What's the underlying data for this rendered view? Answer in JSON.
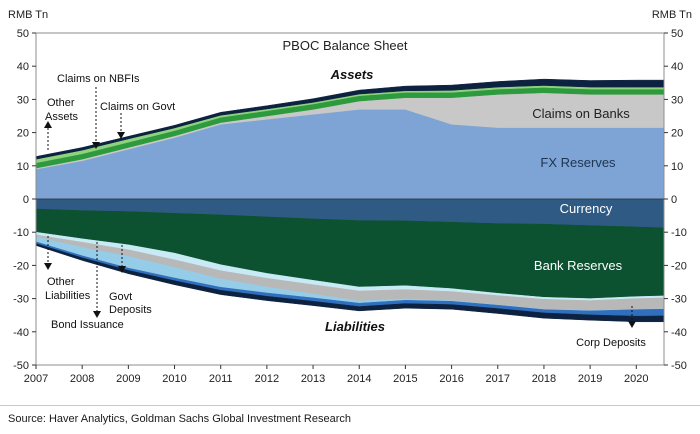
{
  "source_note": "Source: Haver Analytics, Goldman Sachs Global Investment Research",
  "chart_data": {
    "type": "area",
    "title": "PBOC Balance Sheet",
    "ylabel_left": "RMB Tn",
    "ylabel_right": "RMB Tn",
    "ylim": [
      -50,
      50
    ],
    "yticks": [
      50,
      40,
      30,
      20,
      10,
      0,
      -10,
      -20,
      -30,
      -40,
      -50
    ],
    "xlim": [
      2007,
      2020.6
    ],
    "xticks": [
      "2007",
      "2008",
      "2009",
      "2010",
      "2011",
      "2012",
      "2013",
      "2014",
      "2015",
      "2016",
      "2017",
      "2018",
      "2019",
      "2020"
    ],
    "grid": false,
    "x": [
      2007,
      2008,
      2009,
      2010,
      2011,
      2012,
      2013,
      2014,
      2015,
      2016,
      2017,
      2018,
      2019,
      2020,
      2020.6
    ],
    "assets": [
      {
        "name": "FX Reserves",
        "color": "#7da4d4",
        "values": [
          9,
          11.5,
          15,
          18.5,
          22.5,
          24,
          25.5,
          27,
          27,
          22.5,
          21.5,
          21.5,
          21.5,
          21.5,
          21.5
        ]
      },
      {
        "name": "Claims on Banks",
        "color": "#c8c8c8",
        "values": [
          0.3,
          0.5,
          0.5,
          0.5,
          0.5,
          1,
          1.5,
          2.5,
          3.5,
          8,
          10,
          10.5,
          10,
          10,
          10
        ]
      },
      {
        "name": "Claims on Govt",
        "color": "#2e9a3e",
        "values": [
          1.6,
          1.6,
          1.6,
          1.6,
          1.6,
          1.6,
          1.6,
          1.6,
          1.6,
          1.6,
          1.6,
          1.6,
          1.6,
          1.6,
          1.6
        ]
      },
      {
        "name": "Claims on NBFIs",
        "color": "#8fd27d",
        "values": [
          1.1,
          1.1,
          1.0,
          0.8,
          0.6,
          0.5,
          0.5,
          0.5,
          0.5,
          0.6,
          0.6,
          0.6,
          0.6,
          0.6,
          0.6
        ]
      },
      {
        "name": "Other Assets",
        "color": "#0d2240",
        "values": [
          0.8,
          0.8,
          0.8,
          0.8,
          0.9,
          1.0,
          1.1,
          1.2,
          1.4,
          1.6,
          1.7,
          1.9,
          2.0,
          2.1,
          2.1
        ]
      }
    ],
    "liabilities": [
      {
        "name": "Currency",
        "color": "#2f5a84",
        "values": [
          -3,
          -3.5,
          -3.8,
          -4.3,
          -4.8,
          -5.4,
          -6,
          -6.5,
          -6.6,
          -7,
          -7.4,
          -7.6,
          -8,
          -8.4,
          -8.7
        ]
      },
      {
        "name": "Bank Reserves",
        "color": "#0c5130",
        "values": [
          -7,
          -8.5,
          -10,
          -12,
          -15,
          -17,
          -18.5,
          -20,
          -19.5,
          -20,
          -21,
          -22,
          -22,
          -21,
          -20.5
        ]
      },
      {
        "name": "Other Liabilities",
        "color": "#c7eaf5",
        "values": [
          -0.8,
          -1,
          -1.5,
          -2,
          -1.8,
          -1.5,
          -1.3,
          -1.2,
          -1.2,
          -0.9,
          -0.7,
          -0.6,
          -0.6,
          -0.6,
          -0.6
        ]
      },
      {
        "name": "Govt Deposits",
        "color": "#b8b8b8",
        "values": [
          -0.6,
          -1.6,
          -2,
          -2.3,
          -2.5,
          -2.6,
          -2.8,
          -3,
          -2.8,
          -2.7,
          -2.8,
          -3,
          -3,
          -3.2,
          -3.3
        ]
      },
      {
        "name": "Bond Issuance",
        "color": "#95cce8",
        "values": [
          -1.5,
          -2.5,
          -3.5,
          -3.2,
          -2.5,
          -1.8,
          -1.2,
          -0.7,
          -0.4,
          -0.2,
          -0.1,
          -0.1,
          -0.1,
          -0.1,
          -0.1
        ]
      },
      {
        "name": "Corp Deposits",
        "color": "#2f6fbd",
        "values": [
          -0.5,
          -0.6,
          -0.7,
          -0.8,
          -0.9,
          -1.0,
          -1.0,
          -1.0,
          -1.0,
          -1.0,
          -1.0,
          -1.0,
          -1.2,
          -2.0,
          -2.0
        ]
      },
      {
        "name": "Other",
        "color": "#0d2240",
        "values": [
          -0.6,
          -0.8,
          -1.0,
          -1.2,
          -1.3,
          -1.3,
          -1.3,
          -1.3,
          -1.4,
          -1.4,
          -1.5,
          -1.6,
          -1.6,
          -1.7,
          -1.8
        ]
      }
    ],
    "annotations": {
      "assets": "Assets",
      "liabilities": "Liabilities",
      "fx_reserves": "FX Reserves",
      "claims_on_banks": "Claims on Banks",
      "claims_on_nbfis": "Claims on NBFIs",
      "claims_on_govt": "Claims on Govt",
      "other_assets_line1": "Other",
      "other_assets_line2": "Assets",
      "currency": "Currency",
      "bank_reserves": "Bank Reserves",
      "other_liabilities_line1": "Other",
      "other_liabilities_line2": "Liabilities",
      "govt_deposits_line1": "Govt",
      "govt_deposits_line2": "Deposits",
      "bond_issuance": "Bond Issuance",
      "corp_deposits": "Corp Deposits"
    }
  }
}
